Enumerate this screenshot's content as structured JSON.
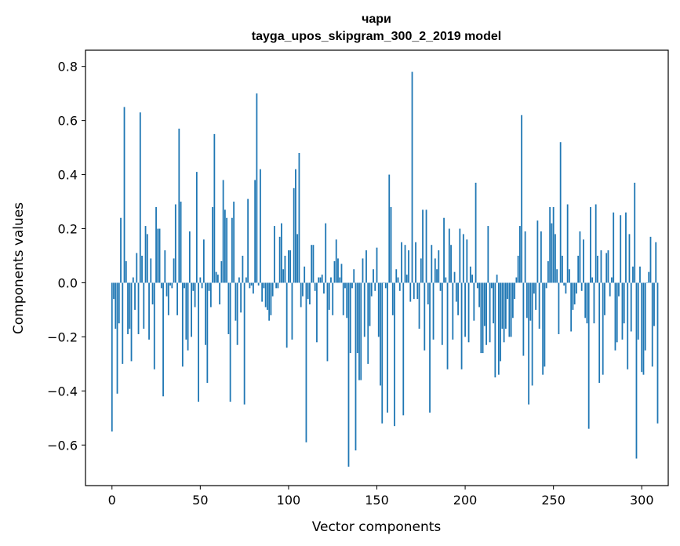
{
  "chart_data": {
    "type": "bar",
    "title_line1": "чари",
    "title_line2": "tayga_upos_skipgram_300_2_2019 model",
    "xlabel": "Vector components",
    "ylabel": "Components values",
    "xlim": [
      -15,
      315
    ],
    "ylim": [
      -0.75,
      0.86
    ],
    "x_ticks": [
      0,
      50,
      100,
      150,
      200,
      250,
      300
    ],
    "x_tick_labels": [
      "0",
      "50",
      "100",
      "150",
      "200",
      "250",
      "300"
    ],
    "y_ticks": [
      -0.6,
      -0.4,
      -0.2,
      0.0,
      0.2,
      0.4,
      0.6,
      0.8
    ],
    "y_tick_labels": [
      "−0.6",
      "−0.4",
      "−0.2",
      "0.0",
      "0.2",
      "0.4",
      "0.6",
      "0.8"
    ],
    "bar_color": "#1f77b4",
    "grid": false,
    "values": [
      -0.55,
      -0.06,
      -0.17,
      -0.41,
      -0.15,
      0.24,
      -0.3,
      0.65,
      0.08,
      -0.19,
      -0.17,
      -0.29,
      0.02,
      -0.1,
      0.11,
      -0.19,
      0.63,
      0.1,
      -0.17,
      0.21,
      0.18,
      -0.21,
      0.09,
      -0.08,
      -0.32,
      0.28,
      0.2,
      0.2,
      -0.02,
      -0.42,
      0.12,
      -0.05,
      -0.12,
      -0.01,
      -0.02,
      0.09,
      0.29,
      -0.12,
      0.57,
      0.3,
      -0.31,
      -0.02,
      -0.21,
      -0.25,
      0.19,
      -0.2,
      -0.03,
      -0.09,
      0.41,
      -0.44,
      0.02,
      -0.02,
      0.16,
      -0.23,
      -0.37,
      -0.03,
      -0.09,
      0.28,
      0.55,
      0.04,
      0.03,
      -0.08,
      0.08,
      0.38,
      0.27,
      0.24,
      -0.19,
      -0.44,
      0.24,
      0.3,
      -0.14,
      -0.23,
      0.02,
      -0.11,
      0.1,
      -0.45,
      0.02,
      0.31,
      -0.02,
      -0.01,
      -0.04,
      0.38,
      0.7,
      -0.01,
      0.42,
      -0.07,
      -0.02,
      -0.09,
      -0.1,
      -0.14,
      -0.12,
      -0.05,
      0.21,
      -0.02,
      -0.02,
      0.17,
      0.22,
      0.05,
      0.1,
      -0.24,
      0.12,
      0.12,
      -0.21,
      0.35,
      0.42,
      0.18,
      0.48,
      -0.09,
      -0.05,
      0.06,
      -0.59,
      -0.06,
      -0.08,
      0.14,
      0.14,
      -0.03,
      -0.22,
      0.02,
      0.02,
      0.03,
      -0.04,
      0.22,
      -0.29,
      -0.1,
      0.02,
      -0.12,
      0.08,
      0.16,
      0.09,
      0.02,
      0.07,
      -0.12,
      -0.02,
      -0.13,
      -0.68,
      -0.26,
      -0.02,
      0.05,
      -0.62,
      -0.26,
      -0.36,
      -0.36,
      0.09,
      -0.2,
      0.12,
      -0.3,
      -0.16,
      -0.05,
      0.05,
      -0.03,
      0.13,
      -0.2,
      -0.38,
      -0.52,
      0.0,
      -0.02,
      -0.48,
      0.4,
      0.28,
      -0.12,
      -0.53,
      0.05,
      0.02,
      -0.03,
      0.15,
      -0.49,
      0.14,
      0.03,
      0.12,
      -0.07,
      0.78,
      -0.06,
      0.15,
      -0.06,
      -0.17,
      0.09,
      0.27,
      -0.25,
      0.27,
      -0.08,
      -0.48,
      0.14,
      -0.21,
      0.09,
      0.05,
      0.12,
      -0.03,
      -0.23,
      0.24,
      0.02,
      -0.32,
      0.2,
      0.14,
      -0.21,
      0.04,
      -0.07,
      -0.12,
      0.2,
      -0.32,
      0.18,
      -0.2,
      0.16,
      -0.22,
      0.06,
      0.03,
      -0.14,
      0.37,
      -0.02,
      -0.09,
      -0.26,
      -0.26,
      -0.16,
      -0.23,
      0.21,
      -0.22,
      -0.02,
      -0.15,
      -0.35,
      0.03,
      -0.34,
      -0.29,
      -0.17,
      -0.22,
      -0.17,
      -0.06,
      -0.2,
      -0.2,
      -0.13,
      -0.06,
      0.02,
      0.1,
      0.21,
      0.62,
      -0.27,
      0.19,
      -0.13,
      -0.45,
      -0.14,
      -0.38,
      -0.04,
      -0.1,
      0.23,
      -0.17,
      0.19,
      -0.34,
      -0.31,
      -0.02,
      0.08,
      0.28,
      0.22,
      0.28,
      0.18,
      0.05,
      -0.19,
      0.52,
      0.1,
      -0.01,
      -0.04,
      0.29,
      0.05,
      -0.18,
      -0.1,
      -0.08,
      -0.04,
      0.1,
      0.19,
      -0.03,
      0.16,
      -0.13,
      -0.15,
      -0.54,
      0.28,
      0.02,
      -0.15,
      0.29,
      0.1,
      -0.37,
      0.12,
      -0.34,
      -0.12,
      0.11,
      0.12,
      -0.05,
      0.02,
      0.26,
      -0.25,
      -0.22,
      -0.05,
      0.25,
      -0.21,
      -0.15,
      0.26,
      -0.32,
      0.18,
      -0.18,
      0.06,
      0.37,
      -0.65,
      -0.21,
      0.06,
      -0.33,
      -0.34,
      -0.25,
      0.0,
      0.04,
      0.17,
      -0.31,
      -0.16,
      0.15,
      -0.52
    ]
  }
}
